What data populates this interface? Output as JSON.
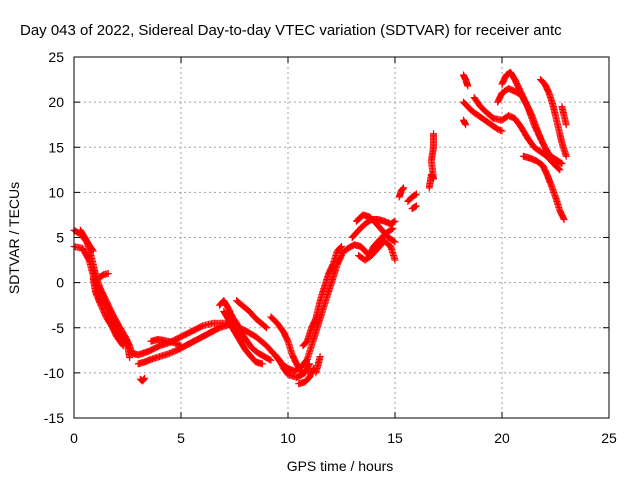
{
  "chart_data": {
    "type": "scatter",
    "title": "Day 043 of 2022, Sidereal Day-to-day VTEC variation (SDTVAR) for receiver antc",
    "xlabel": "GPS time / hours",
    "ylabel": "SDTVAR / TECUs",
    "xlim": [
      0,
      25
    ],
    "ylim": [
      -15,
      25
    ],
    "xticks": [
      "0",
      "5",
      "10",
      "15",
      "20",
      "25"
    ],
    "yticks": [
      "-15",
      "-10",
      "-5",
      "0",
      "5",
      "10",
      "15",
      "20",
      "25"
    ],
    "grid": true,
    "marker": "plus",
    "color": "#ff0000",
    "series": [
      {
        "name": "s1",
        "points": [
          [
            0.0,
            5.8
          ],
          [
            0.3,
            5.4
          ],
          [
            0.6,
            4.5
          ],
          [
            0.8,
            3.0
          ],
          [
            1.0,
            1.0
          ],
          [
            1.2,
            -0.5
          ],
          [
            1.5,
            -2.0
          ],
          [
            1.8,
            -3.5
          ],
          [
            2.1,
            -4.8
          ],
          [
            2.4,
            -6.0
          ],
          [
            2.6,
            -7.0
          ],
          [
            2.7,
            -7.8
          ],
          [
            3.0,
            -8.0
          ],
          [
            3.5,
            -7.6
          ],
          [
            4.0,
            -7.0
          ],
          [
            4.5,
            -6.6
          ],
          [
            5.0,
            -6.0
          ],
          [
            5.5,
            -5.4
          ],
          [
            6.0,
            -4.8
          ],
          [
            6.5,
            -4.5
          ],
          [
            7.0,
            -4.5
          ],
          [
            7.5,
            -4.8
          ],
          [
            8.0,
            -5.3
          ],
          [
            8.5,
            -6.0
          ],
          [
            9.0,
            -7.0
          ],
          [
            9.3,
            -7.8
          ],
          [
            9.6,
            -8.6
          ],
          [
            9.8,
            -9.5
          ],
          [
            10.0,
            -10.2
          ],
          [
            10.4,
            -10.5
          ],
          [
            10.8,
            -10.0
          ],
          [
            11.0,
            -9.0
          ]
        ]
      },
      {
        "name": "s2",
        "points": [
          [
            0.0,
            4.0
          ],
          [
            0.4,
            3.8
          ],
          [
            0.7,
            2.5
          ],
          [
            1.0,
            0.0
          ],
          [
            1.3,
            -1.5
          ],
          [
            1.6,
            -3.0
          ],
          [
            1.9,
            -4.5
          ],
          [
            2.2,
            -5.8
          ],
          [
            2.5,
            -7.0
          ],
          [
            2.6,
            -8.3
          ]
        ]
      },
      {
        "name": "s3",
        "points": [
          [
            0.9,
            0.5
          ],
          [
            1.0,
            -1.0
          ],
          [
            1.2,
            -2.2
          ],
          [
            1.5,
            -3.8
          ],
          [
            1.8,
            -5.0
          ],
          [
            2.0,
            -6.0
          ],
          [
            2.3,
            -7.0
          ]
        ]
      },
      {
        "name": "s4",
        "points": [
          [
            1.2,
            0.6
          ],
          [
            1.4,
            0.9
          ],
          [
            1.6,
            1.0
          ]
        ]
      },
      {
        "name": "s5",
        "points": [
          [
            0.3,
            5.8
          ],
          [
            0.5,
            5.0
          ],
          [
            0.7,
            4.2
          ],
          [
            0.9,
            3.5
          ]
        ]
      },
      {
        "name": "s6",
        "points": [
          [
            3.1,
            -10.7
          ],
          [
            3.2,
            -10.9
          ],
          [
            3.3,
            -10.6
          ]
        ]
      },
      {
        "name": "s7",
        "points": [
          [
            3.0,
            -9.0
          ],
          [
            3.3,
            -8.8
          ],
          [
            3.6,
            -8.5
          ],
          [
            4.0,
            -8.2
          ],
          [
            4.4,
            -7.9
          ],
          [
            4.8,
            -7.5
          ],
          [
            5.2,
            -7.0
          ],
          [
            5.6,
            -6.5
          ],
          [
            6.0,
            -6.0
          ],
          [
            6.4,
            -5.5
          ],
          [
            6.8,
            -5.0
          ],
          [
            7.2,
            -4.7
          ],
          [
            7.6,
            -4.6
          ]
        ]
      },
      {
        "name": "s8",
        "points": [
          [
            3.6,
            -6.5
          ],
          [
            3.9,
            -6.3
          ],
          [
            4.2,
            -6.4
          ],
          [
            4.6,
            -6.6
          ],
          [
            5.0,
            -7.0
          ]
        ]
      },
      {
        "name": "s9",
        "points": [
          [
            6.8,
            -2.5
          ],
          [
            7.0,
            -2.0
          ],
          [
            7.2,
            -2.8
          ],
          [
            7.4,
            -3.8
          ],
          [
            7.6,
            -4.5
          ],
          [
            7.8,
            -5.5
          ],
          [
            8.0,
            -6.2
          ],
          [
            8.3,
            -7.2
          ],
          [
            8.6,
            -7.8
          ],
          [
            8.9,
            -8.2
          ],
          [
            9.2,
            -8.6
          ]
        ]
      },
      {
        "name": "s10",
        "points": [
          [
            7.0,
            -3.2
          ],
          [
            7.2,
            -4.0
          ],
          [
            7.4,
            -5.0
          ],
          [
            7.6,
            -5.8
          ],
          [
            7.8,
            -6.6
          ],
          [
            8.0,
            -7.4
          ],
          [
            8.2,
            -8.0
          ],
          [
            8.5,
            -8.8
          ],
          [
            8.8,
            -9.0
          ]
        ]
      },
      {
        "name": "s11",
        "points": [
          [
            7.6,
            -2.0
          ],
          [
            7.9,
            -2.6
          ],
          [
            8.2,
            -3.2
          ],
          [
            8.5,
            -4.0
          ],
          [
            8.8,
            -4.6
          ],
          [
            9.0,
            -5.0
          ]
        ]
      },
      {
        "name": "s12",
        "points": [
          [
            9.2,
            -3.8
          ],
          [
            9.5,
            -4.5
          ],
          [
            9.8,
            -5.5
          ],
          [
            10.0,
            -6.5
          ],
          [
            10.2,
            -8.0
          ],
          [
            10.4,
            -9.0
          ],
          [
            10.6,
            -9.8
          ]
        ]
      },
      {
        "name": "s13",
        "points": [
          [
            9.4,
            -8.0
          ],
          [
            9.7,
            -9.0
          ],
          [
            10.0,
            -9.5
          ],
          [
            10.3,
            -9.8
          ],
          [
            10.6,
            -9.4
          ],
          [
            10.9,
            -8.5
          ],
          [
            11.1,
            -7.0
          ],
          [
            11.3,
            -5.5
          ],
          [
            11.5,
            -4.0
          ],
          [
            11.7,
            -2.5
          ],
          [
            11.9,
            -1.0
          ],
          [
            12.1,
            0.5
          ],
          [
            12.3,
            2.0
          ],
          [
            12.5,
            3.0
          ]
        ]
      },
      {
        "name": "s14",
        "points": [
          [
            10.7,
            -7.0
          ],
          [
            10.9,
            -6.5
          ],
          [
            11.1,
            -5.0
          ],
          [
            11.3,
            -4.0
          ],
          [
            11.5,
            -2.0
          ],
          [
            11.7,
            -0.5
          ],
          [
            11.9,
            1.0
          ],
          [
            12.1,
            2.0
          ],
          [
            12.3,
            3.5
          ],
          [
            12.5,
            4.0
          ]
        ]
      },
      {
        "name": "s15",
        "points": [
          [
            10.5,
            -11.2
          ],
          [
            10.8,
            -11.0
          ],
          [
            11.0,
            -10.5
          ],
          [
            11.2,
            -9.5
          ]
        ]
      },
      {
        "name": "s16",
        "points": [
          [
            11.3,
            -10.0
          ],
          [
            11.4,
            -9.2
          ],
          [
            11.5,
            -8.2
          ]
        ]
      },
      {
        "name": "s17",
        "points": [
          [
            12.5,
            3.2
          ],
          [
            12.8,
            3.8
          ],
          [
            13.1,
            4.2
          ],
          [
            13.4,
            4.0
          ],
          [
            13.6,
            3.5
          ],
          [
            13.8,
            3.0
          ],
          [
            14.0,
            4.0
          ],
          [
            14.3,
            4.8
          ],
          [
            14.6,
            5.5
          ],
          [
            14.9,
            6.0
          ]
        ]
      },
      {
        "name": "s18",
        "points": [
          [
            13.0,
            5.0
          ],
          [
            13.3,
            5.8
          ],
          [
            13.6,
            6.5
          ],
          [
            13.9,
            7.0
          ],
          [
            14.2,
            7.0
          ],
          [
            14.5,
            6.8
          ],
          [
            14.8,
            6.5
          ],
          [
            15.0,
            6.8
          ]
        ]
      },
      {
        "name": "s19",
        "points": [
          [
            13.2,
            6.8
          ],
          [
            13.5,
            7.5
          ],
          [
            13.8,
            7.3
          ],
          [
            14.1,
            6.6
          ],
          [
            14.4,
            5.8
          ],
          [
            14.7,
            5.0
          ],
          [
            15.0,
            4.5
          ]
        ]
      },
      {
        "name": "s20",
        "points": [
          [
            13.3,
            3.0
          ],
          [
            13.6,
            2.5
          ],
          [
            13.9,
            3.0
          ],
          [
            14.2,
            3.8
          ],
          [
            14.5,
            4.6
          ],
          [
            14.8,
            4.0
          ],
          [
            15.0,
            2.5
          ]
        ]
      },
      {
        "name": "s21",
        "points": [
          [
            15.2,
            9.5
          ],
          [
            15.3,
            10.2
          ],
          [
            15.4,
            10.5
          ]
        ]
      },
      {
        "name": "s22",
        "points": [
          [
            15.6,
            9.0
          ],
          [
            15.8,
            9.5
          ],
          [
            16.0,
            9.8
          ]
        ]
      },
      {
        "name": "s23",
        "points": [
          [
            15.8,
            8.2
          ],
          [
            16.0,
            8.5
          ]
        ]
      },
      {
        "name": "s24",
        "points": [
          [
            16.6,
            10.5
          ],
          [
            16.7,
            12.0
          ],
          [
            16.8,
            11.5
          ],
          [
            16.7,
            13.5
          ],
          [
            16.8,
            15.0
          ],
          [
            16.8,
            16.5
          ]
        ]
      },
      {
        "name": "s25",
        "points": [
          [
            18.2,
            23.0
          ],
          [
            18.3,
            22.5
          ],
          [
            18.4,
            21.8
          ]
        ]
      },
      {
        "name": "s26",
        "points": [
          [
            18.2,
            20.0
          ],
          [
            18.4,
            19.5
          ],
          [
            18.6,
            19.0
          ],
          [
            18.9,
            18.5
          ],
          [
            19.2,
            18.0
          ],
          [
            19.5,
            17.5
          ],
          [
            19.8,
            17.0
          ],
          [
            20.0,
            16.8
          ]
        ]
      },
      {
        "name": "s27",
        "points": [
          [
            18.2,
            18.0
          ],
          [
            18.3,
            17.5
          ]
        ]
      },
      {
        "name": "s28",
        "points": [
          [
            18.7,
            20.5
          ],
          [
            19.0,
            19.5
          ],
          [
            19.3,
            18.8
          ],
          [
            19.6,
            18.2
          ],
          [
            20.0,
            18.0
          ],
          [
            20.3,
            18.5
          ],
          [
            20.6,
            18.2
          ],
          [
            20.9,
            17.2
          ],
          [
            21.2,
            16.0
          ],
          [
            21.5,
            15.0
          ],
          [
            21.8,
            14.5
          ],
          [
            22.1,
            14.0
          ],
          [
            22.4,
            13.2
          ],
          [
            22.7,
            12.5
          ]
        ]
      },
      {
        "name": "s29",
        "points": [
          [
            20.0,
            22.0
          ],
          [
            20.2,
            23.0
          ],
          [
            20.4,
            23.3
          ],
          [
            20.6,
            22.5
          ],
          [
            20.8,
            21.5
          ],
          [
            21.0,
            20.5
          ],
          [
            21.2,
            19.5
          ],
          [
            21.4,
            18.5
          ],
          [
            21.6,
            17.2
          ],
          [
            21.8,
            16.0
          ],
          [
            22.0,
            15.0
          ],
          [
            22.2,
            14.2
          ],
          [
            22.4,
            13.8
          ],
          [
            22.6,
            13.5
          ],
          [
            22.8,
            13.2
          ]
        ]
      },
      {
        "name": "s30",
        "points": [
          [
            19.8,
            20.0
          ],
          [
            20.0,
            21.0
          ],
          [
            20.3,
            21.5
          ],
          [
            20.6,
            21.2
          ],
          [
            20.9,
            20.8
          ],
          [
            21.2,
            19.5
          ],
          [
            21.5,
            17.5
          ],
          [
            21.8,
            16.0
          ]
        ]
      },
      {
        "name": "s31",
        "points": [
          [
            21.0,
            14.0
          ],
          [
            21.3,
            13.8
          ],
          [
            21.6,
            13.5
          ],
          [
            21.9,
            13.0
          ],
          [
            22.1,
            12.0
          ],
          [
            22.3,
            10.8
          ],
          [
            22.5,
            9.5
          ],
          [
            22.7,
            8.0
          ],
          [
            22.9,
            7.0
          ]
        ]
      },
      {
        "name": "s32",
        "points": [
          [
            21.8,
            22.5
          ],
          [
            22.0,
            22.0
          ],
          [
            22.2,
            21.0
          ],
          [
            22.4,
            19.5
          ],
          [
            22.6,
            17.5
          ],
          [
            22.8,
            15.5
          ],
          [
            23.0,
            14.0
          ]
        ]
      },
      {
        "name": "s33",
        "points": [
          [
            22.8,
            19.5
          ],
          [
            22.9,
            18.5
          ],
          [
            23.0,
            17.5
          ]
        ]
      }
    ]
  }
}
